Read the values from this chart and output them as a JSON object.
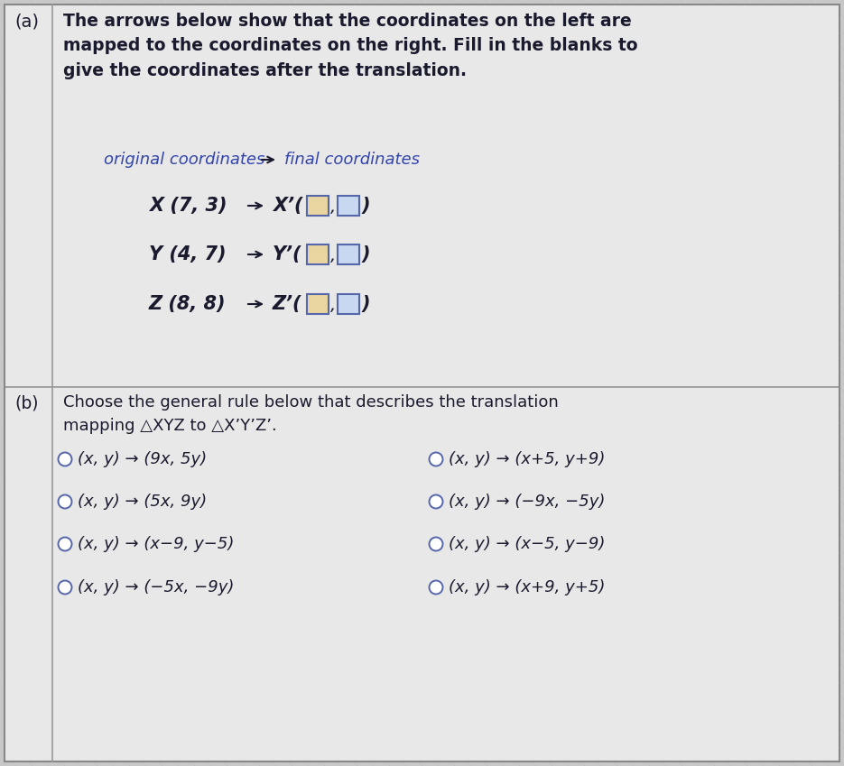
{
  "bg_color": "#c8c8c8",
  "panel_bg": "#e8e8e8",
  "text_color": "#1a1a2e",
  "blue_text": "#3344aa",
  "box_fill_warm": "#e8d5a0",
  "box_fill_cool": "#c8d8f0",
  "box_outline": "#5566aa",
  "circle_color": "#5566aa",
  "title_a": "(a)",
  "title_b": "(b)",
  "description_a": "The arrows below show that the coordinates on the left are\nmapped to the coordinates on the right. Fill in the blanks to\ngive the coordinates after the translation.",
  "orig_label": "original coordinates",
  "final_label": "final coordinates",
  "coord_lefts": [
    "X (7, 3)",
    "Y (4, 7)",
    "Z (8, 8)"
  ],
  "coord_primes": [
    "X’(",
    "Y’(",
    "Z’("
  ],
  "description_b": "Choose the general rule below that describes the translation\nmapping △XYZ to △X’Y’Z’.",
  "options_left": [
    "(x, y) → (9x, 5y)",
    "(x, y) → (5x, 9y)",
    "(x, y) → (x−9, y−5)",
    "(x, y) → (−5x, −9y)"
  ],
  "options_right": [
    "(x, y) → (x+5, y+9)",
    "(x, y) → (−9x, −5y)",
    "(x, y) → (x−5, y−9)",
    "(x, y) → (x+9, y+5)"
  ],
  "figsize": [
    9.35,
    8.49
  ],
  "dpi": 100
}
